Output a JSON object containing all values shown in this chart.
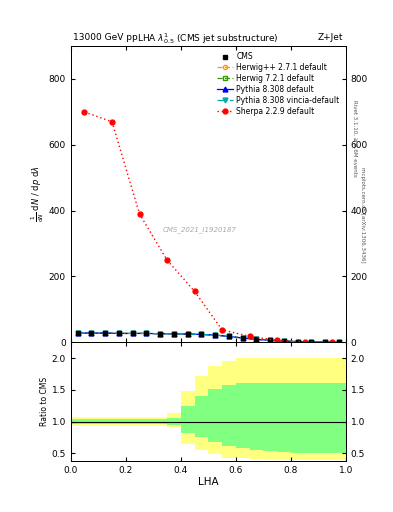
{
  "title": "LHA $\\lambda^1_{0.5}$ (CMS jet substructure)",
  "top_left_label": "13000 GeV pp",
  "top_right_label": "Z+Jet",
  "right_label1": "Rivet 3.1.10, ≥ 2.6M events",
  "right_label2": "mcplots.cern.ch [arXiv:1306.3436]",
  "watermark": "CMS_2021_I1920187",
  "ylabel_ratio": "Ratio to CMS",
  "xlabel": "LHA",
  "xlim": [
    0,
    1
  ],
  "ylim_main": [
    0,
    900
  ],
  "ylim_ratio": [
    0.38,
    2.25
  ],
  "sherpa_x": [
    0.05,
    0.15,
    0.25,
    0.35,
    0.45,
    0.55,
    0.65,
    0.75,
    0.85,
    0.95
  ],
  "sherpa_y": [
    700,
    670,
    390,
    250,
    155,
    38,
    18,
    6,
    1.5,
    0.3
  ],
  "sherpa_color": "#ff0000",
  "cms_x": [
    0.025,
    0.075,
    0.125,
    0.175,
    0.225,
    0.275,
    0.325,
    0.375,
    0.425,
    0.475,
    0.525,
    0.575,
    0.625,
    0.675,
    0.725,
    0.775,
    0.825,
    0.875,
    0.925,
    0.975
  ],
  "cms_y": [
    28,
    28,
    28,
    27,
    27,
    27,
    26,
    26,
    25,
    24,
    22,
    18,
    13,
    9,
    6,
    4,
    2,
    1,
    0.4,
    0.15
  ],
  "cms_color": "#000000",
  "herwig_x": [
    0.025,
    0.075,
    0.125,
    0.175,
    0.225,
    0.275,
    0.325,
    0.375,
    0.425,
    0.475,
    0.525,
    0.575,
    0.625,
    0.675,
    0.725,
    0.775,
    0.825,
    0.875,
    0.925,
    0.975
  ],
  "herwig_y": [
    28,
    28,
    28,
    27,
    27,
    27,
    26,
    26,
    25,
    24,
    22,
    18,
    13,
    9,
    6,
    4,
    2,
    1,
    0.4,
    0.15
  ],
  "herwig_color": "#ff9900",
  "herwig2_x": [
    0.025,
    0.075,
    0.125,
    0.175,
    0.225,
    0.275,
    0.325,
    0.375,
    0.425,
    0.475,
    0.525,
    0.575,
    0.625,
    0.675,
    0.725,
    0.775,
    0.825,
    0.875,
    0.925,
    0.975
  ],
  "herwig2_y": [
    28,
    28,
    28,
    27,
    27,
    27,
    26,
    26,
    25,
    24,
    22,
    18,
    13,
    9,
    6,
    4,
    2,
    1,
    0.4,
    0.15
  ],
  "herwig2_color": "#339900",
  "pythia_x": [
    0.025,
    0.075,
    0.125,
    0.175,
    0.225,
    0.275,
    0.325,
    0.375,
    0.425,
    0.475,
    0.525,
    0.575,
    0.625,
    0.675,
    0.725,
    0.775,
    0.825,
    0.875,
    0.925,
    0.975
  ],
  "pythia_y": [
    28,
    28,
    28,
    27,
    27,
    27,
    26,
    26,
    25,
    24,
    22,
    18,
    13,
    9,
    6,
    4,
    2,
    1,
    0.4,
    0.15
  ],
  "pythia_color": "#0000ff",
  "pythia_vincia_x": [
    0.025,
    0.075,
    0.125,
    0.175,
    0.225,
    0.275,
    0.325,
    0.375,
    0.425,
    0.475,
    0.525,
    0.575,
    0.625,
    0.675,
    0.725,
    0.775,
    0.825,
    0.875,
    0.925,
    0.975
  ],
  "pythia_vincia_y": [
    28,
    28,
    28,
    27,
    27,
    27,
    26,
    26,
    25,
    24,
    22,
    18,
    13,
    9,
    6,
    4,
    2,
    1,
    0.4,
    0.15
  ],
  "pythia_vincia_color": "#00aaaa",
  "ratio_bins": [
    0.0,
    0.05,
    0.1,
    0.15,
    0.2,
    0.25,
    0.3,
    0.35,
    0.4,
    0.45,
    0.5,
    0.55,
    0.6,
    0.65,
    0.7,
    0.75,
    0.8,
    0.85,
    0.9,
    0.95,
    1.0
  ],
  "green_lo": [
    0.96,
    0.96,
    0.96,
    0.96,
    0.96,
    0.96,
    0.96,
    0.95,
    0.82,
    0.75,
    0.68,
    0.62,
    0.58,
    0.55,
    0.53,
    0.52,
    0.51,
    0.5,
    0.5,
    0.5
  ],
  "green_hi": [
    1.04,
    1.04,
    1.04,
    1.04,
    1.04,
    1.04,
    1.04,
    1.06,
    1.25,
    1.4,
    1.52,
    1.58,
    1.6,
    1.6,
    1.6,
    1.6,
    1.6,
    1.6,
    1.6,
    1.6
  ],
  "yellow_lo": [
    0.93,
    0.93,
    0.93,
    0.93,
    0.93,
    0.93,
    0.93,
    0.92,
    0.65,
    0.55,
    0.48,
    0.43,
    0.42,
    0.41,
    0.4,
    0.4,
    0.4,
    0.4,
    0.4,
    0.4
  ],
  "yellow_hi": [
    1.07,
    1.07,
    1.07,
    1.07,
    1.07,
    1.07,
    1.07,
    1.14,
    1.48,
    1.72,
    1.88,
    1.95,
    2.0,
    2.0,
    2.0,
    2.0,
    2.0,
    2.0,
    2.0,
    2.0
  ],
  "green_color": "#80ff80",
  "yellow_color": "#ffff80",
  "yticks_main": [
    0,
    200,
    400,
    600,
    800
  ],
  "yticks_ratio": [
    0.5,
    1.0,
    1.5,
    2.0
  ],
  "xticks": [
    0,
    0.2,
    0.4,
    0.6,
    0.8,
    1.0
  ],
  "bg_color": "#ffffff",
  "legend_fontsize": 5.5,
  "main_fontsize": 6.5
}
